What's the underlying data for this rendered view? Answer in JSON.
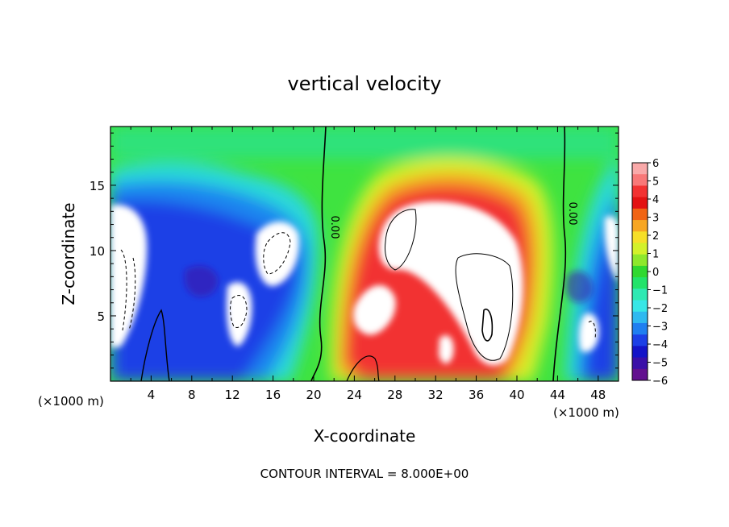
{
  "chart_data": {
    "type": "heatmap",
    "title": "vertical velocity",
    "xlabel": "X-coordinate",
    "ylabel": "Z-coordinate",
    "x_unit_left": "(×1000 m)",
    "x_unit_right": "(×1000 m)",
    "footer": "CONTOUR INTERVAL = 8.000E+00",
    "xlim": [
      0,
      50
    ],
    "ylim": [
      0,
      19.5
    ],
    "x_ticks": [
      "4",
      "8",
      "12",
      "16",
      "20",
      "24",
      "28",
      "32",
      "36",
      "40",
      "44",
      "48"
    ],
    "y_ticks": [
      "5",
      "10",
      "15"
    ],
    "colorbar": {
      "ticks": [
        "6",
        "5",
        "4",
        "3",
        "2",
        "1",
        "0",
        "−1",
        "−2",
        "−3",
        "−4",
        "−5",
        "−6"
      ],
      "range": [
        -6,
        6
      ],
      "colors": [
        "#f9a9a9",
        "#f87878",
        "#f23232",
        "#e31212",
        "#f06414",
        "#f7a623",
        "#f6df28",
        "#d3f12a",
        "#8ee82c",
        "#30d830",
        "#22e36a",
        "#2fe9b3",
        "#38e6e6",
        "#2fb9f0",
        "#1f7ff0",
        "#1c40e6",
        "#1414c8",
        "#3b10a8",
        "#62108f"
      ]
    },
    "zero_contour_labels": [
      "0.00",
      "0.00"
    ],
    "zero_contour_x": [
      21,
      44
    ],
    "features": [
      {
        "type": "updraft",
        "x_range": [
          24,
          43
        ],
        "z_range": [
          1,
          16
        ],
        "peak": ">6"
      },
      {
        "type": "downdraft",
        "x_range": [
          0,
          20
        ],
        "z_range": [
          1,
          14
        ],
        "peak": "<-6"
      },
      {
        "type": "downdraft",
        "x_range": [
          45,
          50
        ],
        "z_range": [
          1,
          14
        ],
        "peak": "<-6"
      }
    ]
  }
}
